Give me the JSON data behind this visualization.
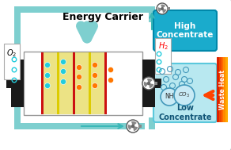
{
  "teal_pipe": "#7ecfcf",
  "teal_dark": "#3ab8b8",
  "high_conc_color": "#1aabcc",
  "high_conc_border": "#0088aa",
  "low_conc_color": "#b8e8f0",
  "low_conc_border": "#5bc8dc",
  "waste_colors": [
    "#dd2200",
    "#ee4400",
    "#ff6600",
    "#ff8800",
    "#ffaa00"
  ],
  "electrode_color": "#1a1a1a",
  "mem_red": "#cc1111",
  "mem_yellow": "#ddcc00",
  "cyan_dot": "#22ccdd",
  "orange_dot": "#ff7700",
  "title_text": "Energy Carrier",
  "o2_text": "$O_2$",
  "h2_text": "$H_2$",
  "high_text": "High\nConcentrate",
  "low_text": "Low\nConcentrate",
  "waste_text": "Waste Heat",
  "nh_text": "NH",
  "co_text": "$CO_3$"
}
